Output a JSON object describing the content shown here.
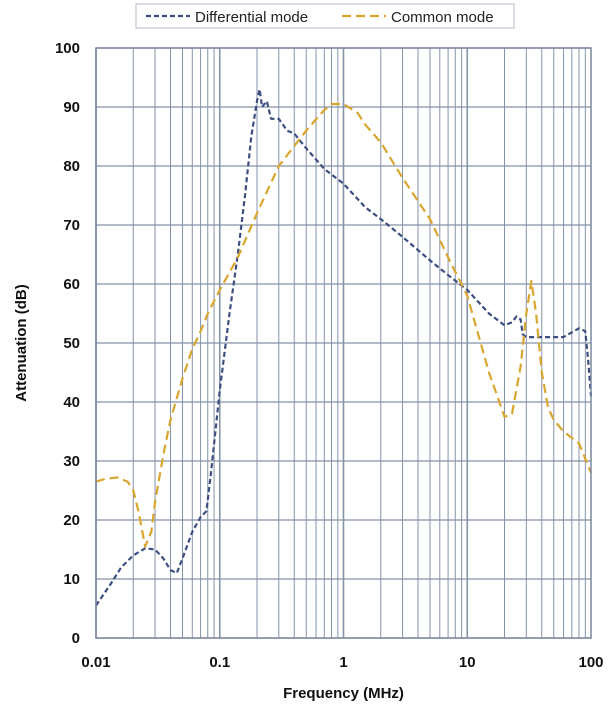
{
  "chart_data": {
    "type": "line",
    "xscale": "log",
    "xlim": [
      0.01,
      100
    ],
    "ylim": [
      0,
      100
    ],
    "xlabel": "Frequency (MHz)",
    "ylabel": "Attenuation (dB)",
    "x_ticks": [
      {
        "v": 0.01,
        "label": "0.01"
      },
      {
        "v": 0.1,
        "label": "0.1"
      },
      {
        "v": 1,
        "label": "1"
      },
      {
        "v": 10,
        "label": "10"
      },
      {
        "v": 100,
        "label": "100"
      }
    ],
    "y_ticks": [
      {
        "v": 0,
        "label": "0"
      },
      {
        "v": 10,
        "label": "10"
      },
      {
        "v": 20,
        "label": "20"
      },
      {
        "v": 30,
        "label": "30"
      },
      {
        "v": 40,
        "label": "40"
      },
      {
        "v": 50,
        "label": "50"
      },
      {
        "v": 60,
        "label": "60"
      },
      {
        "v": 70,
        "label": "70"
      },
      {
        "v": 80,
        "label": "80"
      },
      {
        "v": 90,
        "label": "90"
      },
      {
        "v": 100,
        "label": "100"
      }
    ],
    "grid": true,
    "legend_position": "top",
    "colors": {
      "grid": "#8593a8",
      "frame": "#7a879c"
    },
    "series": [
      {
        "name": "Differential mode",
        "color": "#3d4f82",
        "dash": "short",
        "points": [
          [
            0.01,
            5.5
          ],
          [
            0.013,
            9
          ],
          [
            0.016,
            12
          ],
          [
            0.02,
            14
          ],
          [
            0.025,
            15.2
          ],
          [
            0.03,
            15
          ],
          [
            0.035,
            13.5
          ],
          [
            0.04,
            11.5
          ],
          [
            0.045,
            11
          ],
          [
            0.05,
            13.5
          ],
          [
            0.06,
            18
          ],
          [
            0.07,
            20.5
          ],
          [
            0.078,
            21.5
          ],
          [
            0.085,
            28
          ],
          [
            0.1,
            42
          ],
          [
            0.12,
            55
          ],
          [
            0.14,
            65
          ],
          [
            0.16,
            75
          ],
          [
            0.18,
            85
          ],
          [
            0.2,
            91
          ],
          [
            0.21,
            93
          ],
          [
            0.22,
            90
          ],
          [
            0.24,
            91
          ],
          [
            0.26,
            88
          ],
          [
            0.3,
            88
          ],
          [
            0.35,
            86
          ],
          [
            0.4,
            85.5
          ],
          [
            0.5,
            83
          ],
          [
            0.7,
            79.5
          ],
          [
            1,
            77
          ],
          [
            1.5,
            73
          ],
          [
            2,
            71
          ],
          [
            3,
            68
          ],
          [
            5,
            64
          ],
          [
            7,
            61.5
          ],
          [
            10,
            59
          ],
          [
            15,
            55
          ],
          [
            20,
            53
          ],
          [
            23,
            53.5
          ],
          [
            25,
            54.5
          ],
          [
            27,
            54
          ],
          [
            28,
            51.5
          ],
          [
            30,
            51
          ],
          [
            40,
            51
          ],
          [
            60,
            51
          ],
          [
            80,
            52.5
          ],
          [
            90,
            52
          ],
          [
            95,
            47
          ],
          [
            100,
            41
          ]
        ]
      },
      {
        "name": "Common mode",
        "color": "#d9a62e",
        "dash": "long",
        "points": [
          [
            0.01,
            26.5
          ],
          [
            0.012,
            27
          ],
          [
            0.015,
            27.2
          ],
          [
            0.018,
            26.5
          ],
          [
            0.02,
            25
          ],
          [
            0.022,
            21.5
          ],
          [
            0.025,
            15.5
          ],
          [
            0.028,
            18
          ],
          [
            0.03,
            23
          ],
          [
            0.035,
            31
          ],
          [
            0.04,
            37
          ],
          [
            0.05,
            44
          ],
          [
            0.06,
            49
          ],
          [
            0.07,
            52
          ],
          [
            0.08,
            55
          ],
          [
            0.1,
            59
          ],
          [
            0.14,
            64.5
          ],
          [
            0.2,
            72
          ],
          [
            0.3,
            80
          ],
          [
            0.5,
            86
          ],
          [
            0.7,
            89.5
          ],
          [
            0.8,
            90.5
          ],
          [
            1,
            90.5
          ],
          [
            1.3,
            89
          ],
          [
            1.5,
            87
          ],
          [
            2,
            84
          ],
          [
            3,
            78
          ],
          [
            5,
            71
          ],
          [
            7,
            64.5
          ],
          [
            10,
            58
          ],
          [
            15,
            45
          ],
          [
            20,
            37.5
          ],
          [
            23,
            38
          ],
          [
            27,
            46
          ],
          [
            30,
            55
          ],
          [
            33,
            60.5
          ],
          [
            36,
            55
          ],
          [
            40,
            45
          ],
          [
            45,
            39
          ],
          [
            50,
            37
          ],
          [
            60,
            35
          ],
          [
            80,
            33
          ],
          [
            100,
            28
          ]
        ]
      }
    ]
  }
}
